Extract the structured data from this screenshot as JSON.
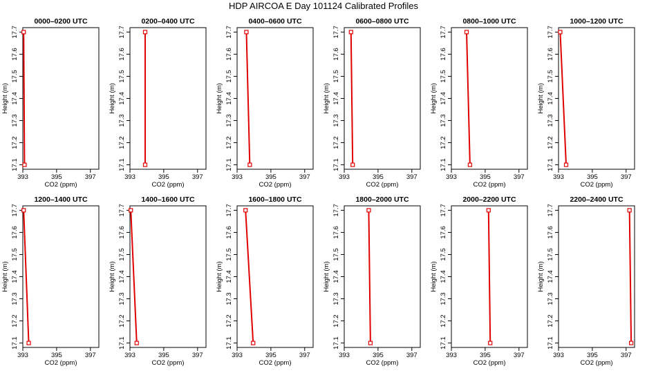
{
  "title": "HDP AIRCOA E  Day 101124  Calibrated Profiles",
  "chart_data": {
    "type": "line",
    "xlabel": "CO2 (ppm)",
    "ylabel": "Height (m)",
    "xlim": [
      393,
      397.5
    ],
    "ylim": [
      17.08,
      17.72
    ],
    "xticks": [
      "393",
      "395",
      "397"
    ],
    "yticks": [
      "17.1",
      "17.2",
      "17.3",
      "17.4",
      "17.5",
      "17.6",
      "17.7"
    ],
    "line_color": "#e00000",
    "marker": "open-square",
    "panels": [
      {
        "title": "0000–0200 UTC",
        "points": [
          {
            "x": 393.05,
            "y": 17.7
          },
          {
            "x": 393.1,
            "y": 17.1
          }
        ]
      },
      {
        "title": "0200–0400 UTC",
        "points": [
          {
            "x": 393.9,
            "y": 17.7
          },
          {
            "x": 393.9,
            "y": 17.1
          }
        ]
      },
      {
        "title": "0400–0600 UTC",
        "points": [
          {
            "x": 393.55,
            "y": 17.7
          },
          {
            "x": 393.75,
            "y": 17.1
          }
        ]
      },
      {
        "title": "0600–0800 UTC",
        "points": [
          {
            "x": 393.4,
            "y": 17.7
          },
          {
            "x": 393.5,
            "y": 17.1
          }
        ]
      },
      {
        "title": "0800–1000 UTC",
        "points": [
          {
            "x": 393.9,
            "y": 17.7
          },
          {
            "x": 394.1,
            "y": 17.1
          }
        ]
      },
      {
        "title": "1000–1200 UTC",
        "points": [
          {
            "x": 393.1,
            "y": 17.7
          },
          {
            "x": 393.45,
            "y": 17.1
          }
        ]
      },
      {
        "title": "1200–1400 UTC",
        "points": [
          {
            "x": 393.05,
            "y": 17.7
          },
          {
            "x": 393.35,
            "y": 17.1
          }
        ]
      },
      {
        "title": "1400–1600 UTC",
        "points": [
          {
            "x": 393.05,
            "y": 17.7
          },
          {
            "x": 393.4,
            "y": 17.1
          }
        ]
      },
      {
        "title": "1600–1800 UTC",
        "points": [
          {
            "x": 393.5,
            "y": 17.7
          },
          {
            "x": 393.95,
            "y": 17.1
          }
        ]
      },
      {
        "title": "1800–2000 UTC",
        "points": [
          {
            "x": 394.45,
            "y": 17.7
          },
          {
            "x": 394.55,
            "y": 17.1
          }
        ]
      },
      {
        "title": "2000–2200 UTC",
        "points": [
          {
            "x": 395.2,
            "y": 17.7
          },
          {
            "x": 395.3,
            "y": 17.1
          }
        ]
      },
      {
        "title": "2200–2400 UTC",
        "points": [
          {
            "x": 397.2,
            "y": 17.7
          },
          {
            "x": 397.3,
            "y": 17.1
          }
        ]
      }
    ]
  }
}
